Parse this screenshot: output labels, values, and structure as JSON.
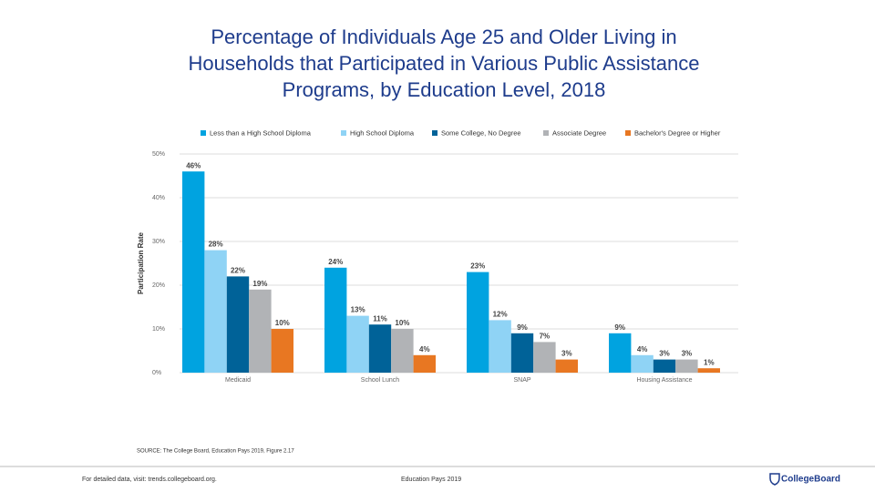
{
  "chart_data": {
    "type": "bar",
    "title": "Percentage of Individuals Age 25 and Older Living in Households that Participated in Various Public Assistance Programs, by Education Level, 2018",
    "y_label": "Participation Rate",
    "categories": [
      "Medicaid",
      "School Lunch",
      "SNAP",
      "Housing Assistance"
    ],
    "series": [
      {
        "name": "Less than a High School Diploma",
        "color": "#00a3e0",
        "values": [
          46,
          24,
          23,
          9
        ],
        "value_labels": [
          "46%",
          "24%",
          "23%",
          "9%"
        ]
      },
      {
        "name": "High School Diploma",
        "color": "#8fd3f5",
        "values": [
          28,
          13,
          12,
          4
        ],
        "value_labels": [
          "28%",
          "13%",
          "12%",
          "4%"
        ]
      },
      {
        "name": "Some College, No Degree",
        "color": "#006298",
        "values": [
          22,
          11,
          9,
          3
        ],
        "value_labels": [
          "22%",
          "11%",
          "9%",
          "3%"
        ]
      },
      {
        "name": "Associate Degree",
        "color": "#b1b3b6",
        "values": [
          19,
          10,
          7,
          3
        ],
        "value_labels": [
          "19%",
          "10%",
          "7%",
          "3%"
        ]
      },
      {
        "name": "Bachelor's Degree or Higher",
        "color": "#e87722",
        "values": [
          10,
          4,
          3,
          1
        ],
        "value_labels": [
          "10%",
          "4%",
          "3%",
          "1%"
        ]
      }
    ],
    "ylim": [
      0,
      50
    ],
    "yticks": [
      {
        "value": 0,
        "label": "0%"
      },
      {
        "value": 10,
        "label": "10%"
      },
      {
        "value": 20,
        "label": "20%"
      },
      {
        "value": 30,
        "label": "30%"
      },
      {
        "value": 40,
        "label": "40%"
      },
      {
        "value": 50,
        "label": "50%"
      }
    ],
    "grid": true,
    "legend": "top"
  },
  "footer": {
    "source": "SOURCE: The College Board, Education Pays 2019, Figure 2.17",
    "left": "For detailed data, visit: trends.collegeboard.org.",
    "center": "Education Pays 2019",
    "logo": "CollegeBoard"
  }
}
